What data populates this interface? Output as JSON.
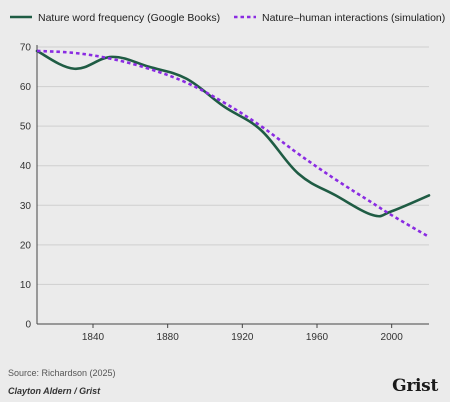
{
  "chart_data": {
    "type": "line",
    "title": "",
    "xlabel": "",
    "ylabel": "",
    "xlim": [
      1810,
      2020
    ],
    "ylim": [
      0,
      70
    ],
    "xticks": [
      1840,
      1880,
      1920,
      1960,
      2000
    ],
    "yticks": [
      0,
      10,
      20,
      30,
      40,
      50,
      60,
      70
    ],
    "grid": "horizontal",
    "legend_position": "top",
    "series": [
      {
        "name": "Nature word frequency (Google Books)",
        "color": "#1f5c44",
        "style": "solid",
        "points": [
          [
            1810,
            69
          ],
          [
            1830,
            64.5
          ],
          [
            1850,
            67.5
          ],
          [
            1870,
            65
          ],
          [
            1890,
            62
          ],
          [
            1910,
            55
          ],
          [
            1930,
            49
          ],
          [
            1950,
            38
          ],
          [
            1970,
            32.5
          ],
          [
            1990,
            27.5
          ],
          [
            2000,
            28.5
          ],
          [
            2020,
            32.5
          ]
        ]
      },
      {
        "name": "Nature–human interactions (simulation)",
        "color": "#8a2be2",
        "style": "dashed",
        "points": [
          [
            1810,
            69
          ],
          [
            1830,
            68.5
          ],
          [
            1850,
            67
          ],
          [
            1870,
            64.5
          ],
          [
            1890,
            61
          ],
          [
            1910,
            56
          ],
          [
            1930,
            50
          ],
          [
            1950,
            43
          ],
          [
            1970,
            36.5
          ],
          [
            1990,
            30.5
          ],
          [
            2000,
            27.5
          ],
          [
            2020,
            22
          ]
        ]
      }
    ]
  },
  "footer": {
    "source": "Source: Richardson (2025)",
    "byline": "Clayton Aldern / Grist",
    "brand": "Grist"
  }
}
